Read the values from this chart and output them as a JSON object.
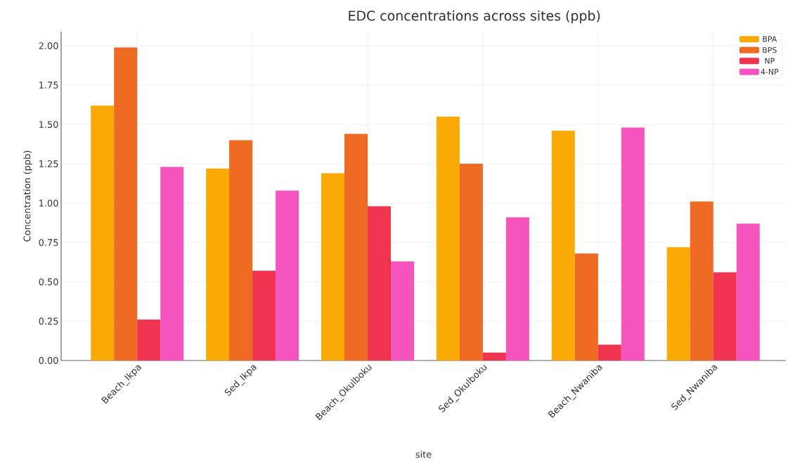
{
  "chart_data": {
    "type": "bar",
    "title": "EDC concentrations across sites (ppb)",
    "xlabel": "site",
    "ylabel": "Concentration (ppb)",
    "categories": [
      "Beach_Ikpa",
      "Sed_Ikpa",
      "Beach_Okulboku",
      "Sed_Okulboku",
      "Beach_Nwaniba",
      "Sed_Nwaniba"
    ],
    "series": [
      {
        "name": "BPA",
        "color": "#fbaa05",
        "values": [
          1.62,
          1.22,
          1.19,
          1.55,
          1.46,
          0.72
        ]
      },
      {
        "name": "BPS",
        "color": "#ef6a22",
        "values": [
          1.99,
          1.4,
          1.44,
          1.25,
          0.68,
          1.01
        ]
      },
      {
        "name": "NP",
        "color": "#f0334f",
        "values": [
          0.26,
          0.57,
          0.98,
          0.05,
          0.1,
          0.56
        ]
      },
      {
        "name": "4-NP",
        "color": "#f654be",
        "values": [
          1.23,
          1.08,
          0.63,
          0.91,
          1.48,
          0.87
        ]
      }
    ],
    "ylim": [
      0,
      2.09
    ],
    "yticks": [
      {
        "value": 0,
        "label": "0.00"
      },
      {
        "value": 0.25,
        "label": "0.25"
      },
      {
        "value": 0.5,
        "label": "0.50"
      },
      {
        "value": 0.75,
        "label": "0.75"
      },
      {
        "value": 1,
        "label": "1.00"
      },
      {
        "value": 1.25,
        "label": "1.25"
      },
      {
        "value": 1.5,
        "label": "1.50"
      },
      {
        "value": 1.75,
        "label": "1.75"
      },
      {
        "value": 2,
        "label": "2.00"
      }
    ],
    "grid": true,
    "legend": "top right"
  }
}
